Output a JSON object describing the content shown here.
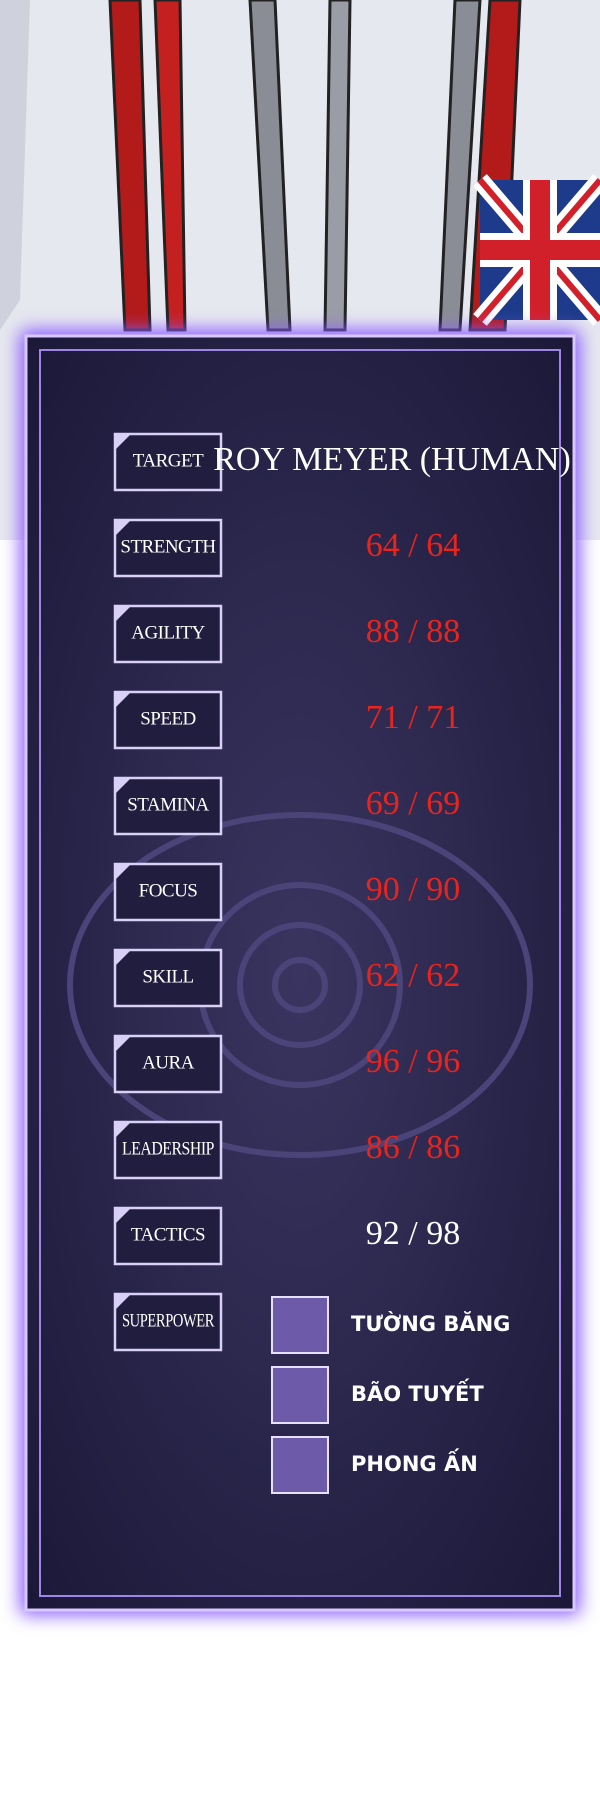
{
  "panel": {
    "target": {
      "label": "TARGET",
      "value": "ROY MEYER (HUMAN)"
    },
    "stats": [
      {
        "label": "STRENGTH",
        "value": "64 / 64",
        "color": "#e8241c"
      },
      {
        "label": "AGILITY",
        "value": "88 / 88",
        "color": "#e8241c"
      },
      {
        "label": "SPEED",
        "value": "71 / 71",
        "color": "#e8241c"
      },
      {
        "label": "STAMINA",
        "value": "69 / 69",
        "color": "#e8241c"
      },
      {
        "label": "FOCUS",
        "value": "90 / 90",
        "color": "#e8241c"
      },
      {
        "label": "SKILL",
        "value": "62 / 62",
        "color": "#e8241c"
      },
      {
        "label": "AURA",
        "value": "96 / 96",
        "color": "#e8241c"
      },
      {
        "label": "LEADERSHIP",
        "value": "86 / 86",
        "color": "#e8241c"
      },
      {
        "label": "TACTICS",
        "value": "92 / 98",
        "color": "#ffffff"
      }
    ],
    "superpower": {
      "label": "SUPERPOWER",
      "skills": [
        "TƯỜNG BĂNG",
        "BÃO TUYẾT",
        "PHONG ẤN"
      ]
    }
  }
}
